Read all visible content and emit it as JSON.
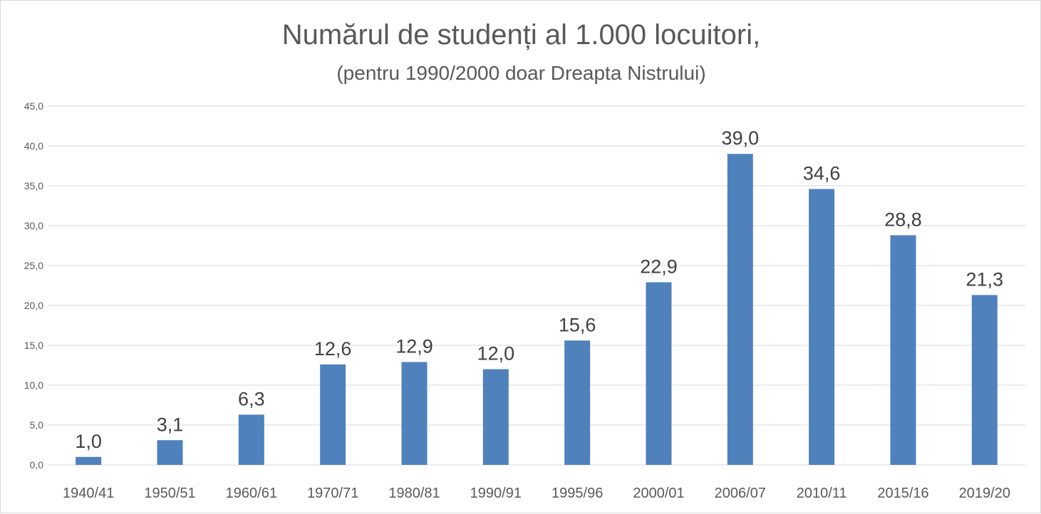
{
  "chart_data": {
    "type": "bar",
    "title": "Numărul de studenți al 1.000 locuitori,",
    "subtitle": "(pentru 1990/2000 doar Dreapta Nistrului)",
    "xlabel": "",
    "ylabel": "",
    "categories": [
      "1940/41",
      "1950/51",
      "1960/61",
      "1970/71",
      "1980/81",
      "1990/91",
      "1995/96",
      "2000/01",
      "2006/07",
      "2010/11",
      "2015/16",
      "2019/20"
    ],
    "values": [
      1.0,
      3.1,
      6.3,
      12.6,
      12.9,
      12.0,
      15.6,
      22.9,
      39.0,
      34.6,
      28.8,
      21.3
    ],
    "data_labels": [
      "1,0",
      "3,1",
      "6,3",
      "12,6",
      "12,9",
      "12,0",
      "15,6",
      "22,9",
      "39,0",
      "34,6",
      "28,8",
      "21,3"
    ],
    "y_ticks": [
      "0,0",
      "5,0",
      "10,0",
      "15,0",
      "20,0",
      "25,0",
      "30,0",
      "35,0",
      "40,0",
      "45,0"
    ],
    "ylim": [
      0,
      45
    ],
    "grid": true,
    "legend": "none",
    "bar_color": "#4f81bd",
    "grid_color": "#d9d9d9"
  }
}
